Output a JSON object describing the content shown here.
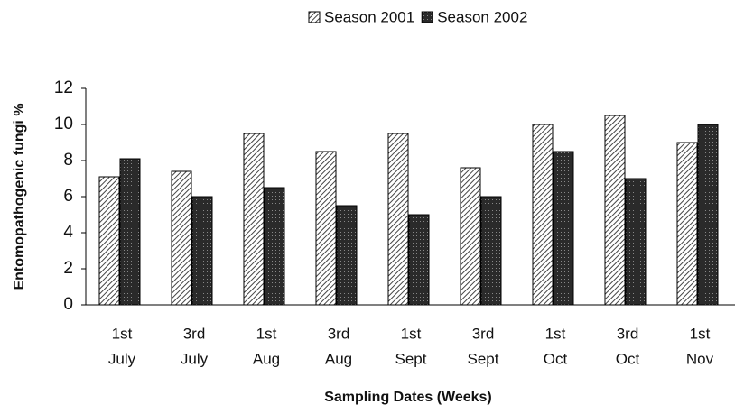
{
  "chart_data": {
    "type": "bar",
    "x_label": "Sampling Dates (Weeks)",
    "y_label": "Entomopathogenic fungi %",
    "categories": [
      [
        "1st",
        "July"
      ],
      [
        "3rd",
        "July"
      ],
      [
        "1st",
        "Aug"
      ],
      [
        "3rd",
        "Aug"
      ],
      [
        "1st",
        "Sept"
      ],
      [
        "3rd",
        "Sept"
      ],
      [
        "1st",
        "Oct"
      ],
      [
        "3rd",
        "Oct"
      ],
      [
        "1st",
        "Nov"
      ]
    ],
    "series": [
      {
        "name": "Season 2001",
        "color": "#444444",
        "values": [
          7.1,
          7.4,
          9.5,
          8.5,
          9.5,
          7.6,
          10,
          10.5,
          9
        ]
      },
      {
        "name": "Season 2002",
        "color": "#2a2a2a",
        "values": [
          8.1,
          6,
          6.5,
          5.5,
          5,
          6,
          8.5,
          7,
          10
        ]
      }
    ],
    "ylim": [
      0,
      12
    ],
    "yticks": [
      0,
      2,
      4,
      6,
      8,
      10,
      12
    ],
    "grid": false,
    "legend": "top"
  }
}
